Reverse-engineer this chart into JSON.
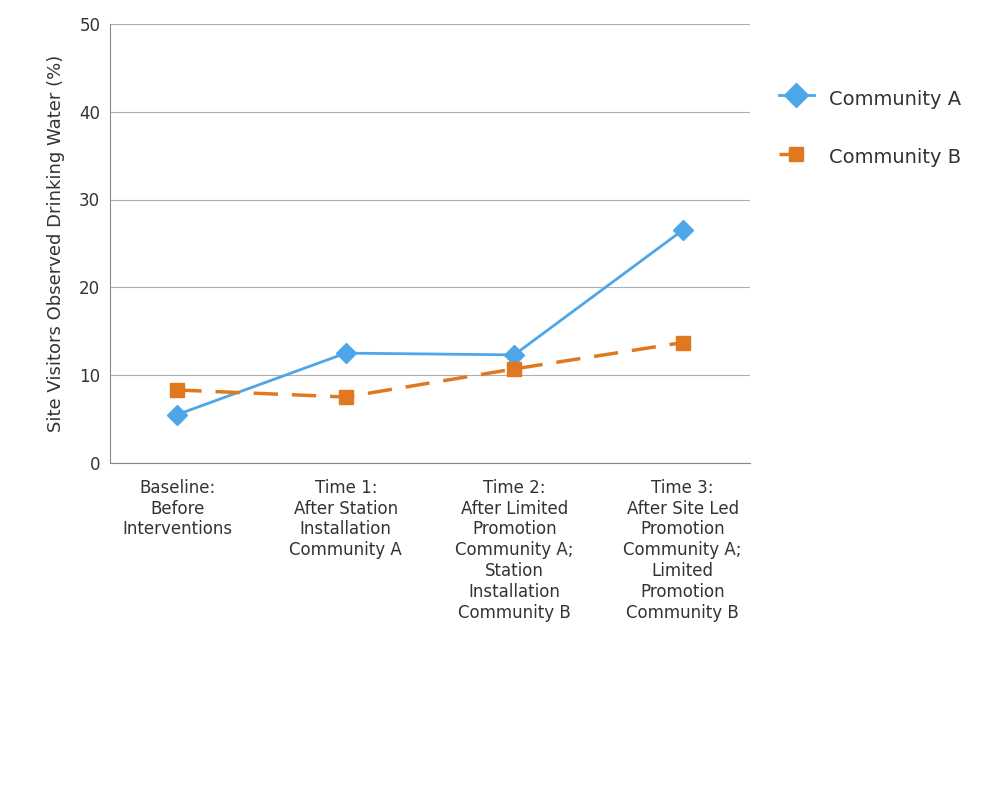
{
  "community_a": [
    5.5,
    12.5,
    12.3,
    26.5
  ],
  "community_b": [
    8.3,
    7.5,
    10.7,
    13.7
  ],
  "x_positions": [
    0,
    1,
    2,
    3
  ],
  "x_labels": [
    "Baseline:\nBefore\nInterventions",
    "Time 1:\nAfter Station\nInstallation\nCommunity A",
    "Time 2:\nAfter Limited\nPromotion\nCommunity A;\nStation\nInstallation\nCommunity B",
    "Time 3:\nAfter Site Led\nPromotion\nCommunity A;\nLimited\nPromotion\nCommunity B"
  ],
  "ylim": [
    0,
    50
  ],
  "yticks": [
    0,
    10,
    20,
    30,
    40,
    50
  ],
  "ylabel": "Site Visitors Observed Drinking Water (%)",
  "color_a": "#4da6e8",
  "color_b": "#e07820",
  "legend_a": "Community A",
  "legend_b": "Community B",
  "grid_color": "#b0b0b0",
  "label_fontsize": 13,
  "tick_fontsize": 12,
  "legend_fontsize": 14,
  "bg_color": "#ffffff"
}
